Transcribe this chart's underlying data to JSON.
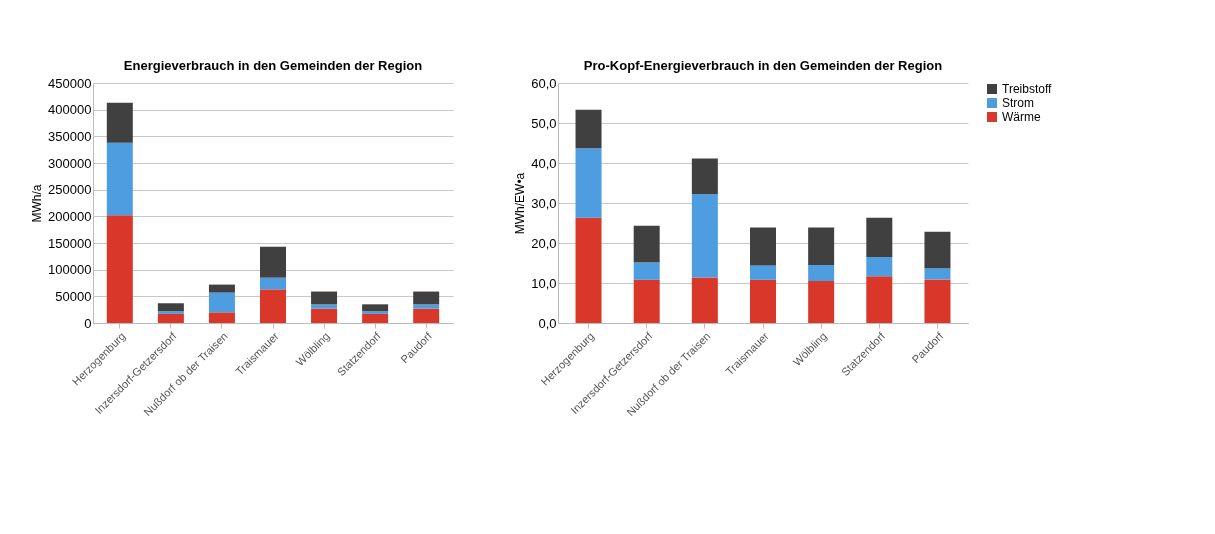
{
  "chart_data": [
    {
      "type": "bar",
      "stacked": true,
      "title": "Energieverbrauch in den Gemeinden der Region",
      "ylabel": "MWh/a",
      "categories": [
        "Herzogenburg",
        "Inzersdorf-Getzersdorf",
        "Nußdorf ob der Traisen",
        "Traismauer",
        "Wölbling",
        "Statzendorf",
        "Paudorf"
      ],
      "series": [
        {
          "color": "#d9372a",
          "values": [
            202000,
            17000,
            20000,
            63000,
            27000,
            17000,
            27000
          ]
        },
        {
          "color": "#4e9de0",
          "values": [
            136000,
            5000,
            37000,
            22000,
            8000,
            5000,
            8000
          ]
        },
        {
          "color": "#404040",
          "values": [
            75000,
            15000,
            15000,
            58000,
            24000,
            13000,
            24000
          ]
        }
      ],
      "ylim": [
        0,
        450000
      ],
      "yticks": [
        0,
        50000,
        100000,
        150000,
        200000,
        250000,
        300000,
        350000,
        400000,
        450000
      ],
      "grid": "y",
      "legend": false
    },
    {
      "type": "bar",
      "stacked": true,
      "title": "Pro-Kopf-Energieverbrauch in den Gemeinden der Region",
      "ylabel": "MWh/EW•a",
      "categories": [
        "Herzogenburg",
        "Inzersdorf-Getzersdorf",
        "Nußdorf ob der Traisen",
        "Traismauer",
        "Wölbling",
        "Statzendorf",
        "Paudorf"
      ],
      "series": [
        {
          "name": "Wärme",
          "color": "#d9372a",
          "values": [
            26.3,
            10.8,
            11.4,
            10.8,
            10.5,
            11.7,
            10.9
          ]
        },
        {
          "name": "Strom",
          "color": "#4e9de0",
          "values": [
            17.4,
            4.3,
            20.8,
            3.6,
            4.0,
            4.8,
            2.8
          ]
        },
        {
          "name": "Treibstoff",
          "color": "#404040",
          "values": [
            9.6,
            9.2,
            8.9,
            9.5,
            9.4,
            9.8,
            9.1
          ]
        }
      ],
      "ylim": [
        0,
        60
      ],
      "yticks": [
        {
          "value": 0,
          "label": "0,0"
        },
        {
          "value": 10,
          "label": "10,0"
        },
        {
          "value": 20,
          "label": "20,0"
        },
        {
          "value": 30,
          "label": "30,0"
        },
        {
          "value": 40,
          "label": "40,0"
        },
        {
          "value": 50,
          "label": "50,0"
        },
        {
          "value": 60,
          "label": "60,0"
        }
      ],
      "grid": "y",
      "legend": "right"
    }
  ]
}
